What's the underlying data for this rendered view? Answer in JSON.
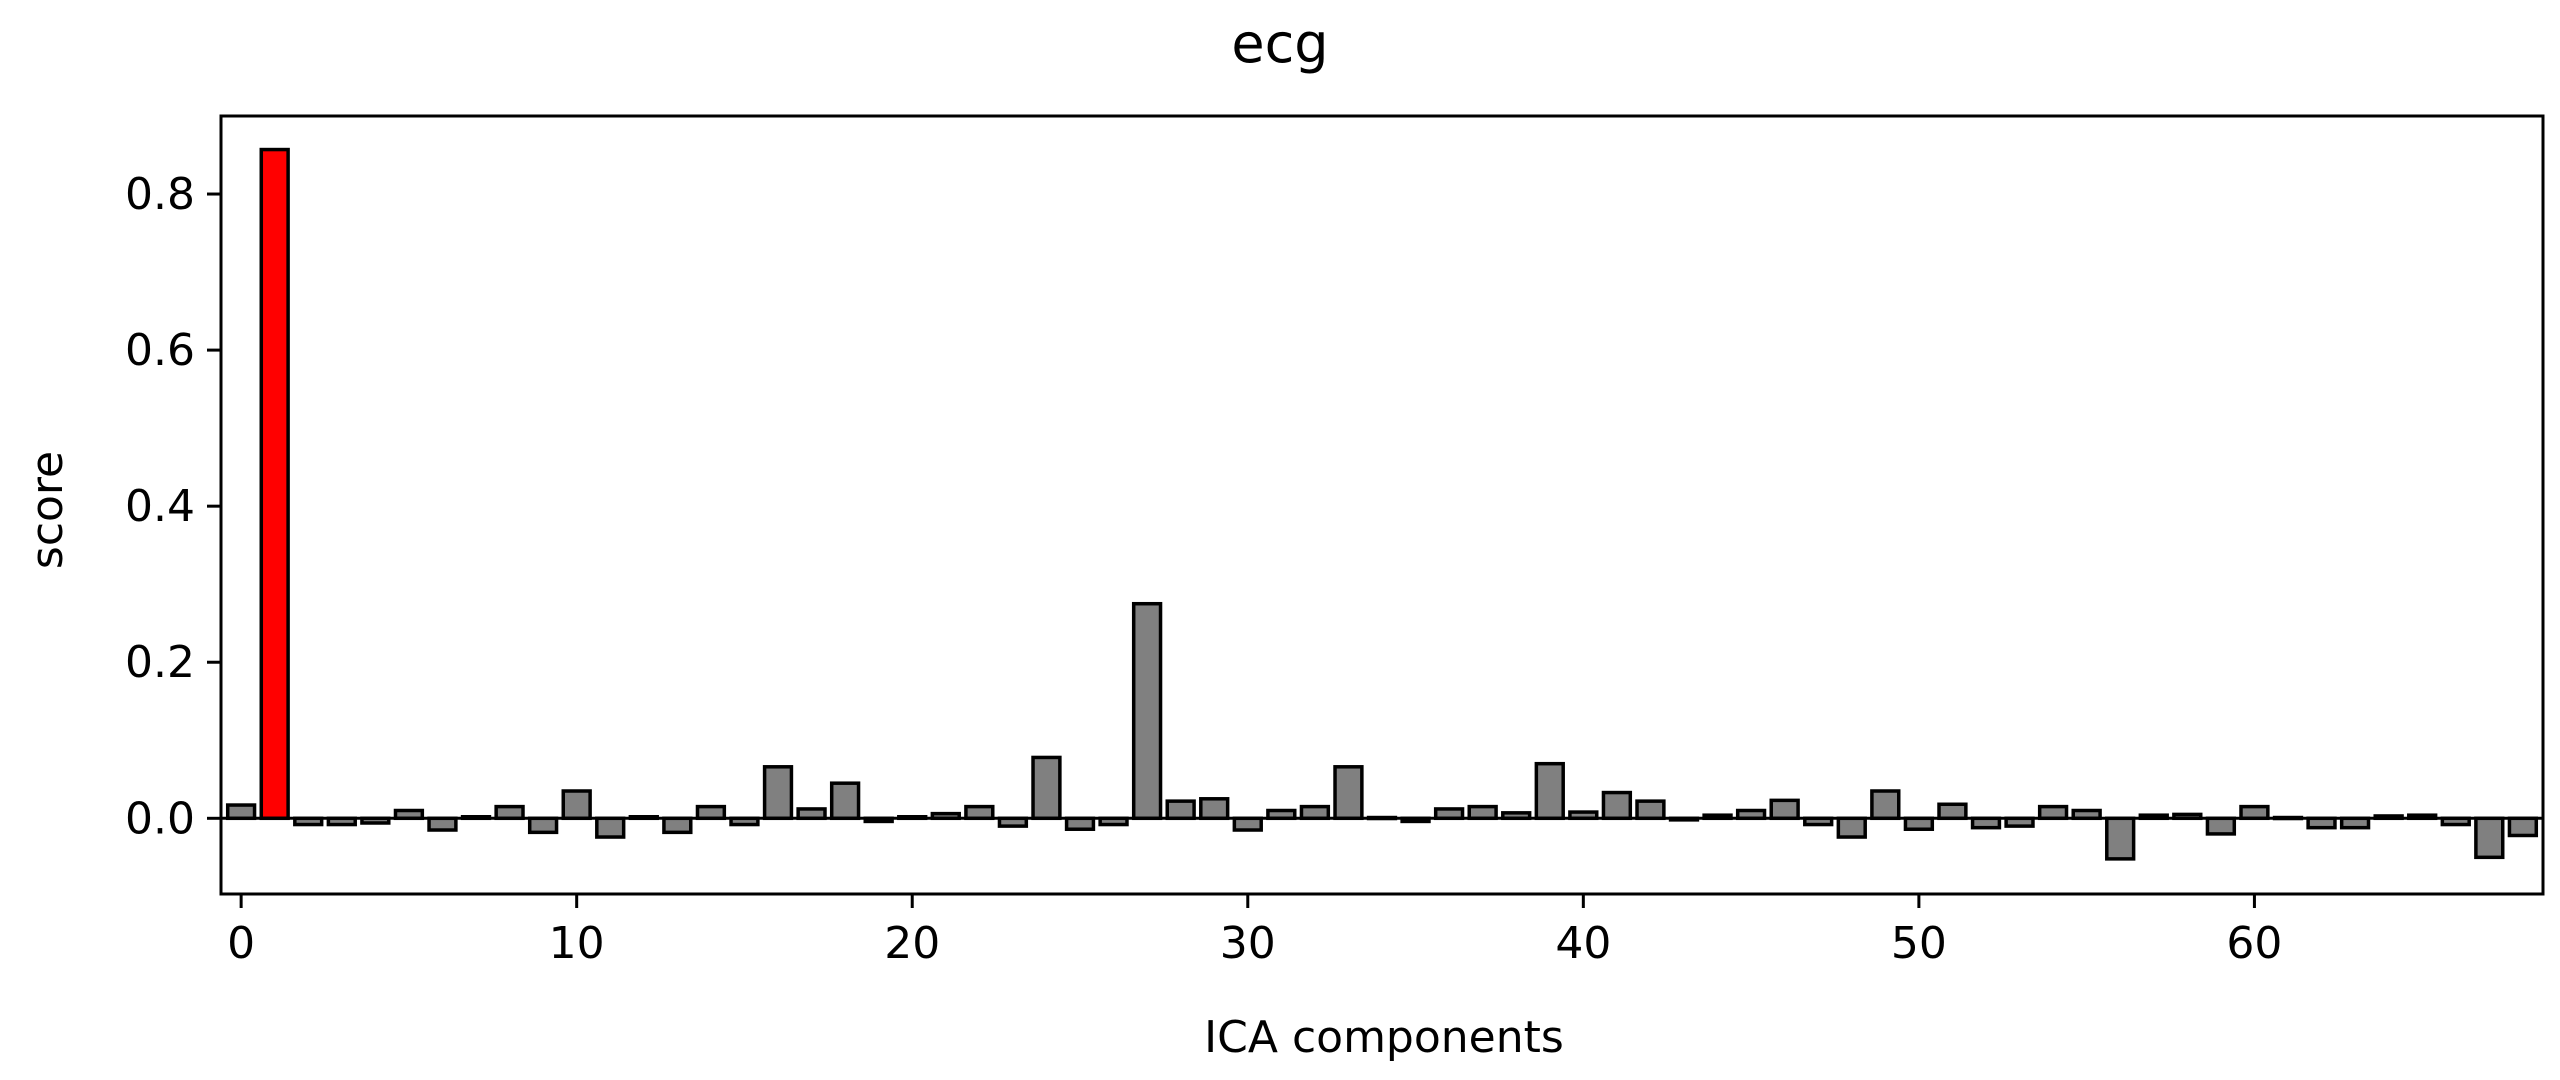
{
  "chart_data": {
    "type": "bar",
    "title": "ecg",
    "xlabel": "ICA components",
    "ylabel": "score",
    "xlim": [
      -0.6,
      68.6
    ],
    "ylim": [
      -0.097,
      0.9
    ],
    "x_ticks": [
      0,
      10,
      20,
      30,
      40,
      50,
      60
    ],
    "x_tick_labels": [
      "0",
      "10",
      "20",
      "30",
      "40",
      "50",
      "60"
    ],
    "y_ticks": [
      0.0,
      0.2,
      0.4,
      0.6,
      0.8
    ],
    "y_tick_labels": [
      "0.0",
      "0.2",
      "0.4",
      "0.6",
      "0.8"
    ],
    "grid": false,
    "bar_color": "#808080",
    "highlight_color": "#ff0000",
    "edge_color": "#000000",
    "highlighted_indices": [
      1
    ],
    "x": [
      0,
      1,
      2,
      3,
      4,
      5,
      6,
      7,
      8,
      9,
      10,
      11,
      12,
      13,
      14,
      15,
      16,
      17,
      18,
      19,
      20,
      21,
      22,
      23,
      24,
      25,
      26,
      27,
      28,
      29,
      30,
      31,
      32,
      33,
      34,
      35,
      36,
      37,
      38,
      39,
      40,
      41,
      42,
      43,
      44,
      45,
      46,
      47,
      48,
      49,
      50,
      51,
      52,
      53,
      54,
      55,
      56,
      57,
      58,
      59,
      60,
      61,
      62,
      63,
      64,
      65,
      66,
      67,
      68
    ],
    "values": [
      0.017,
      0.857,
      -0.008,
      -0.008,
      -0.006,
      0.01,
      -0.015,
      0.002,
      0.015,
      -0.018,
      0.035,
      -0.024,
      0.002,
      -0.018,
      0.015,
      -0.008,
      0.066,
      0.012,
      0.045,
      -0.004,
      0.002,
      0.006,
      0.015,
      -0.01,
      0.078,
      -0.014,
      -0.008,
      0.275,
      0.022,
      0.025,
      -0.015,
      0.01,
      0.015,
      0.066,
      0.001,
      -0.004,
      0.012,
      0.015,
      0.007,
      0.07,
      0.008,
      0.033,
      0.022,
      -0.002,
      0.004,
      0.01,
      0.023,
      -0.008,
      -0.024,
      0.035,
      -0.014,
      0.018,
      -0.012,
      -0.01,
      0.015,
      0.01,
      -0.052,
      0.004,
      0.005,
      -0.02,
      0.015,
      0.001,
      -0.012,
      -0.012,
      0.003,
      0.004,
      -0.008,
      -0.05,
      -0.022
    ]
  }
}
